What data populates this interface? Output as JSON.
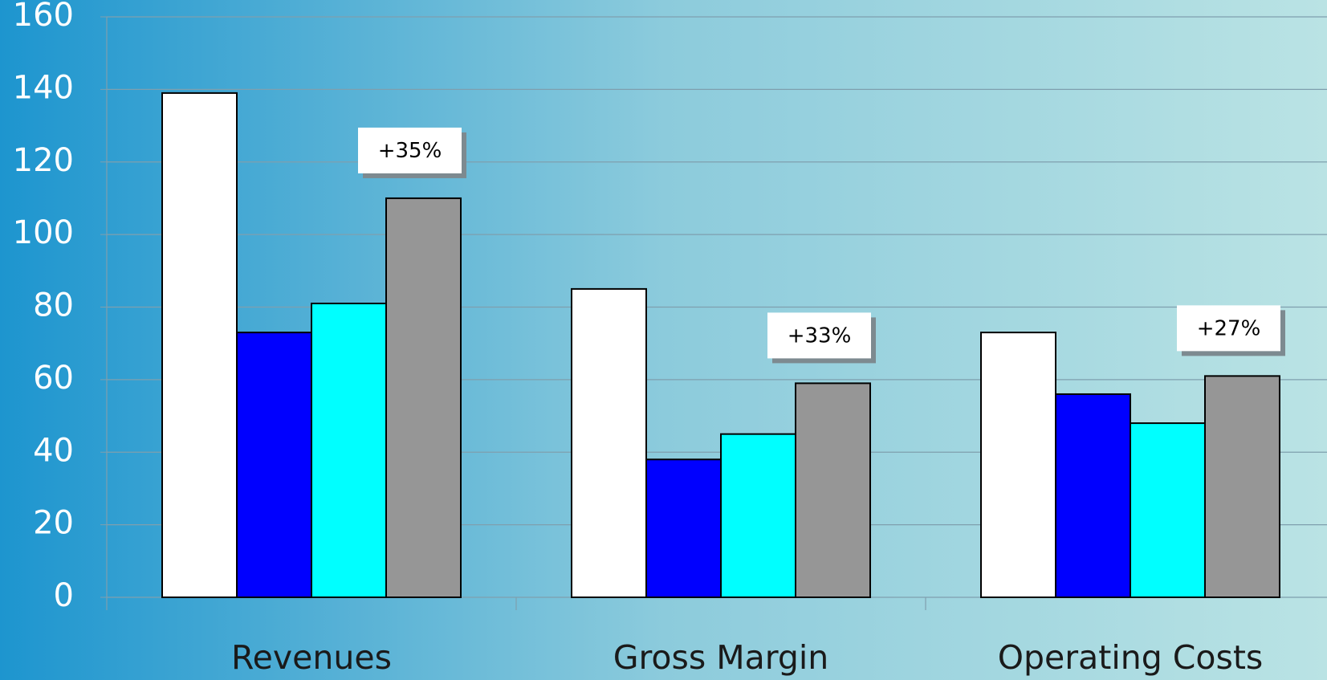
{
  "chart_data": {
    "type": "bar",
    "categories": [
      "Revenues",
      "Gross Margin",
      "Operating Costs"
    ],
    "series": [
      {
        "color": "#ffffff",
        "values": [
          139,
          85,
          73
        ]
      },
      {
        "color": "#0000ff",
        "values": [
          73,
          38,
          56
        ]
      },
      {
        "color": "#00ffff",
        "values": [
          81,
          45,
          48
        ]
      },
      {
        "color": "#969696",
        "values": [
          110,
          59,
          61
        ]
      }
    ],
    "annotations": [
      "+35%",
      "+33%",
      "+27%"
    ],
    "ylim": [
      0,
      160
    ],
    "yticks": [
      0,
      20,
      40,
      60,
      80,
      100,
      120,
      140,
      160
    ],
    "grid": true
  }
}
